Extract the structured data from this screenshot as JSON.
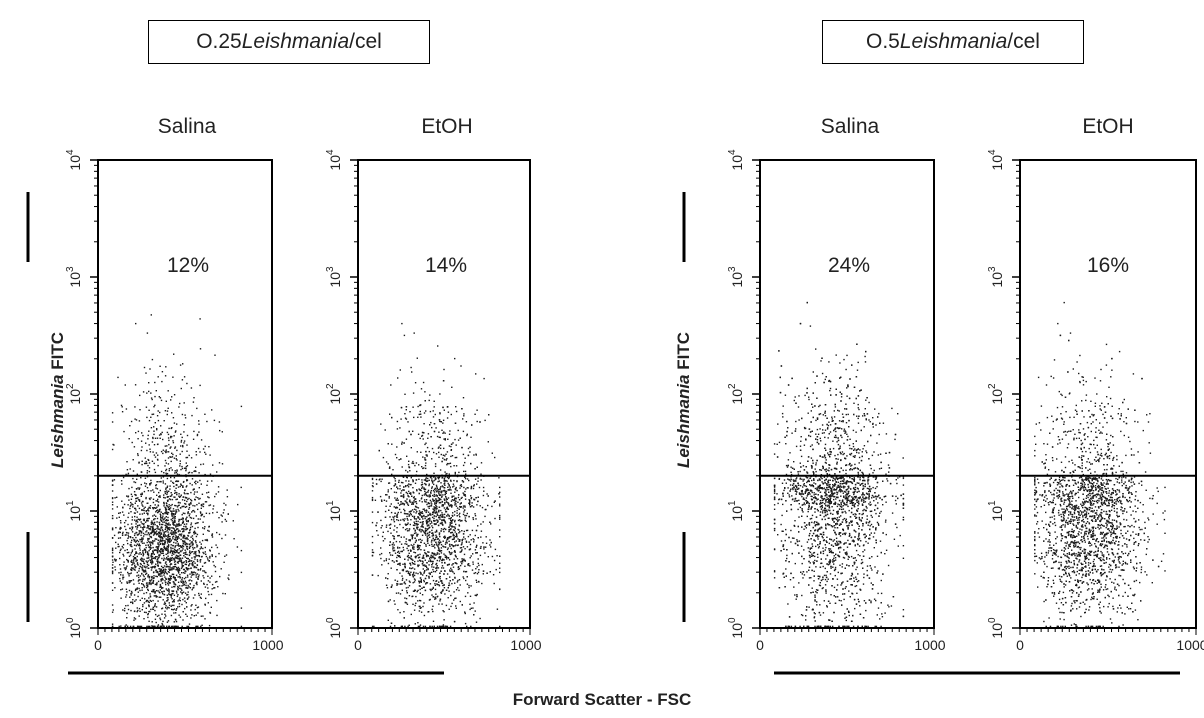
{
  "groups": [
    {
      "label_prefix": "O.25 ",
      "label_italic": "Leishmania",
      "label_suffix": "/cel"
    },
    {
      "label_prefix": "O.5 ",
      "label_italic": "Leishmania",
      "label_suffix": "/cel"
    }
  ],
  "axes": {
    "y_title_italic": "Leishmania",
    "y_title_rest": " FITC",
    "x_title": "Forward Scatter - FSC"
  },
  "chart_data": {
    "type": "scatter",
    "x_axis": {
      "label": "Forward Scatter - FSC",
      "range": [
        0,
        1000
      ],
      "tick_labels": [
        "0",
        "1000"
      ],
      "scale": "linear"
    },
    "y_axis": {
      "label": "Leishmania FITC",
      "range": [
        1,
        10000
      ],
      "scale": "log",
      "tick_labels": [
        "10^0",
        "10^1",
        "10^2",
        "10^3",
        "10^4"
      ]
    },
    "gate_y": 20,
    "panels": [
      {
        "group": "O.25 Leishmania/cel",
        "title": "Salina",
        "percent_label": "12%",
        "percent": 12,
        "x_center": 380,
        "log_y_center": 0.68,
        "spread_x": 140,
        "spread_log_y": 0.33,
        "points": 2600
      },
      {
        "group": "O.25 Leishmania/cel",
        "title": "EtOH",
        "percent_label": "14%",
        "percent": 14,
        "x_center": 430,
        "log_y_center": 0.8,
        "spread_x": 150,
        "spread_log_y": 0.36,
        "points": 2300
      },
      {
        "group": "O.5 Leishmania/cel",
        "title": "Salina",
        "percent_label": "24%",
        "percent": 24,
        "x_center": 420,
        "log_y_center": 0.95,
        "spread_x": 160,
        "spread_log_y": 0.48,
        "points": 2600
      },
      {
        "group": "O.5 Leishmania/cel",
        "title": "EtOH",
        "percent_label": "16%",
        "percent": 16,
        "x_center": 390,
        "log_y_center": 0.83,
        "spread_x": 150,
        "spread_log_y": 0.38,
        "points": 2400
      }
    ]
  }
}
